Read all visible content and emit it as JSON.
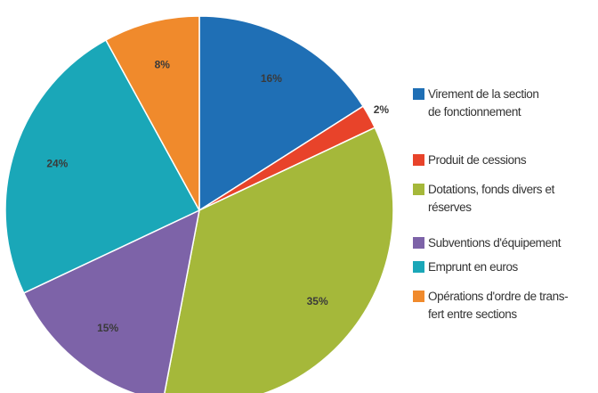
{
  "chart_data": {
    "type": "pie",
    "series": [
      {
        "name": "Virement de la section\nde fonctionnement",
        "color": "#1f6fb5",
        "values": [
          16
        ],
        "value_labels": [
          "16%"
        ]
      },
      {
        "name": "Produit de cessions",
        "color": "#e8432a",
        "values": [
          2
        ],
        "value_labels": [
          "2%"
        ]
      },
      {
        "name": "Dotations, fonds divers et\nréserves",
        "color": "#a5b83a",
        "values": [
          35
        ],
        "value_labels": [
          "35%"
        ]
      },
      {
        "name": "Subventions d'équipement",
        "color": "#7d63a8",
        "values": [
          15
        ],
        "value_labels": [
          "15%"
        ]
      },
      {
        "name": "Emprunt en euros",
        "color": "#1aa7b8",
        "values": [
          24
        ],
        "value_labels": [
          "24%"
        ]
      },
      {
        "name": "Opérations d'ordre de trans-\nfert entre sections",
        "color": "#f08a2c",
        "values": [
          8
        ],
        "value_labels": [
          "8%"
        ]
      }
    ]
  }
}
